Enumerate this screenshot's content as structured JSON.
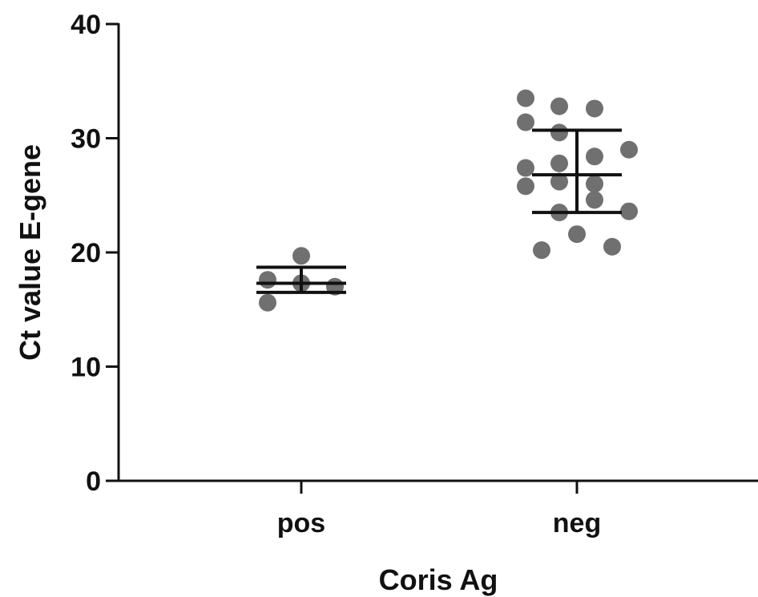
{
  "chart_data": {
    "type": "scatter",
    "title": "",
    "xlabel": "Coris Ag",
    "ylabel": "Ct value E-gene",
    "ylim": [
      0,
      40
    ],
    "yticks": [
      0,
      10,
      20,
      30,
      40
    ],
    "grid": false,
    "legend": "none",
    "categories": [
      "pos",
      "neg"
    ],
    "point_color": "#707070",
    "errorbar_color": "#111111",
    "groups": [
      {
        "category": "pos",
        "values": [
          19.7,
          17.6,
          17.3,
          17.0,
          15.6
        ],
        "mean": 17.3,
        "sd_low": 16.5,
        "sd_high": 18.7
      },
      {
        "category": "neg",
        "values": [
          33.5,
          32.8,
          32.6,
          31.4,
          30.5,
          29.0,
          28.4,
          27.8,
          27.4,
          26.2,
          26.0,
          25.8,
          24.6,
          23.6,
          23.5,
          21.6,
          20.5,
          20.2
        ],
        "mean": 26.8,
        "sd_low": 23.5,
        "sd_high": 30.7
      }
    ]
  }
}
